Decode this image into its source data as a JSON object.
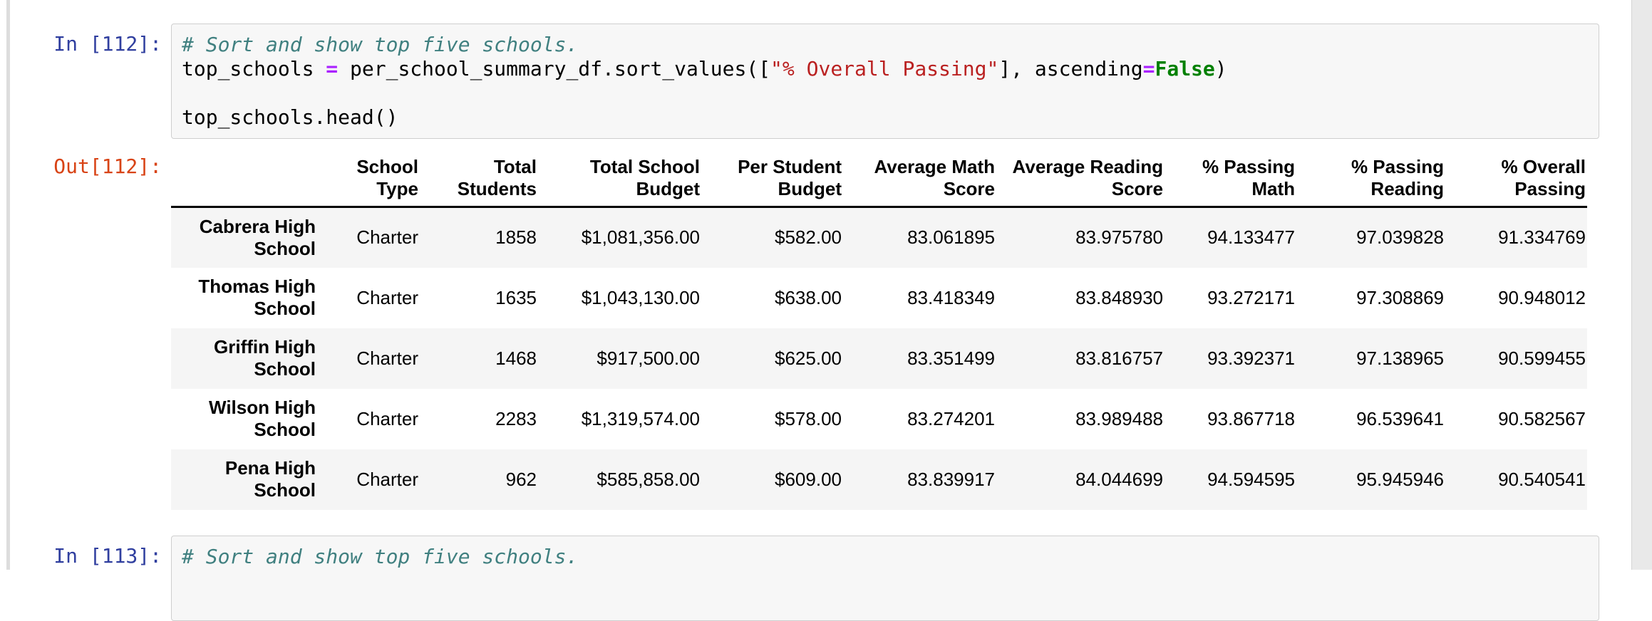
{
  "syntax_colors": {
    "plain": "#000000",
    "comment": "#408080",
    "op": "#AA22FF",
    "str": "#BA2121",
    "kw": "#008000"
  },
  "prompt_colors": {
    "in": "#303F9F",
    "out": "#D84315"
  },
  "cells": [
    {
      "type": "code",
      "prompt": "In [112]:",
      "lines": [
        [
          {
            "t": "comment",
            "v": "# Sort and show top five schools."
          }
        ],
        [
          {
            "t": "plain",
            "v": "top_schools "
          },
          {
            "t": "op",
            "v": "="
          },
          {
            "t": "plain",
            "v": " per_school_summary_df.sort_values(["
          },
          {
            "t": "str",
            "v": "\"% Overall Passing\""
          },
          {
            "t": "plain",
            "v": "], ascending"
          },
          {
            "t": "op",
            "v": "="
          },
          {
            "t": "kw",
            "v": "False"
          },
          {
            "t": "plain",
            "v": ")"
          }
        ],
        [],
        [
          {
            "t": "plain",
            "v": "top_schools.head()"
          }
        ]
      ]
    },
    {
      "type": "output",
      "prompt": "Out[112]:",
      "table": {
        "index_header": "",
        "columns": [
          [
            "School",
            "Type"
          ],
          [
            "Total",
            "Students"
          ],
          [
            "Total School",
            "Budget"
          ],
          [
            "Per Student",
            "Budget"
          ],
          [
            "Average Math",
            "Score"
          ],
          [
            "Average Reading",
            "Score"
          ],
          [
            "% Passing",
            "Math"
          ],
          [
            "% Passing",
            "Reading"
          ],
          [
            "% Overall",
            "Passing"
          ]
        ],
        "rows": [
          {
            "index": "Cabrera High School",
            "values": [
              "Charter",
              "1858",
              "$1,081,356.00",
              "$582.00",
              "83.061895",
              "83.975780",
              "94.133477",
              "97.039828",
              "91.334769"
            ]
          },
          {
            "index": "Thomas High School",
            "values": [
              "Charter",
              "1635",
              "$1,043,130.00",
              "$638.00",
              "83.418349",
              "83.848930",
              "93.272171",
              "97.308869",
              "90.948012"
            ]
          },
          {
            "index": "Griffin High School",
            "values": [
              "Charter",
              "1468",
              "$917,500.00",
              "$625.00",
              "83.351499",
              "83.816757",
              "93.392371",
              "97.138965",
              "90.599455"
            ]
          },
          {
            "index": "Wilson High School",
            "values": [
              "Charter",
              "2283",
              "$1,319,574.00",
              "$578.00",
              "83.274201",
              "83.989488",
              "93.867718",
              "96.539641",
              "90.582567"
            ]
          },
          {
            "index": "Pena High School",
            "values": [
              "Charter",
              "962",
              "$585,858.00",
              "$609.00",
              "83.839917",
              "84.044699",
              "94.594595",
              "95.945946",
              "90.540541"
            ]
          }
        ]
      }
    },
    {
      "type": "code",
      "prompt": "In [113]:",
      "lines": [
        [
          {
            "t": "comment",
            "v": "# Sort and show top five schools."
          }
        ]
      ]
    }
  ]
}
